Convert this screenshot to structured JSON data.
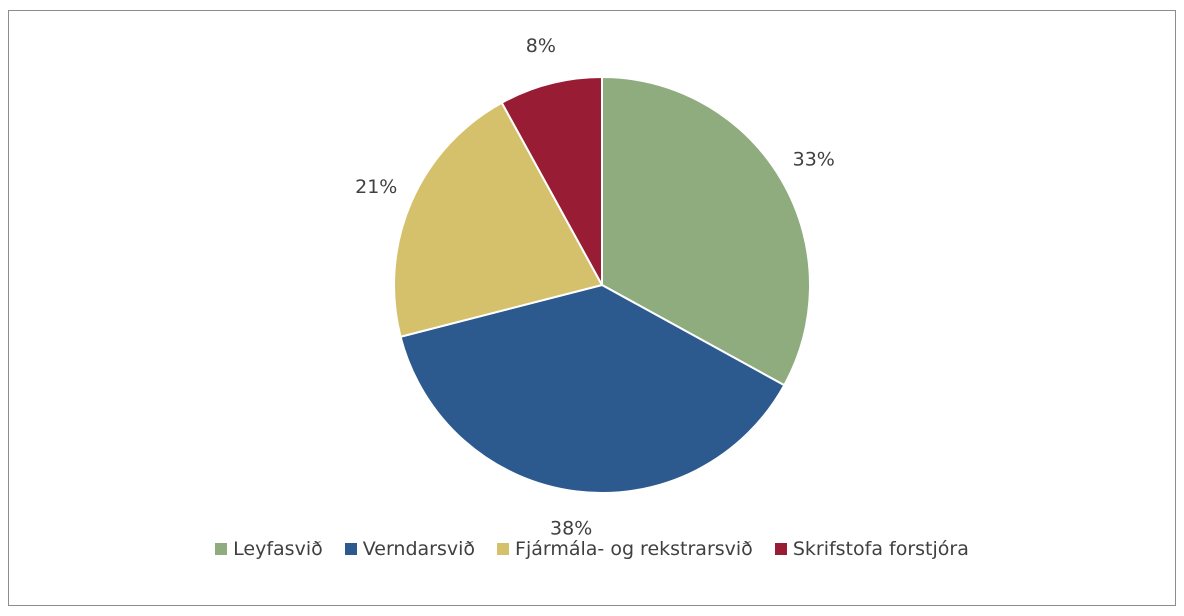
{
  "chart_data": {
    "type": "pie",
    "categories": [
      "Leyfasvið",
      "Verndarsvið",
      "Fjármála- og rekstrarsvið",
      "Skrifstofa forstjóra"
    ],
    "values": [
      33,
      38,
      21,
      8
    ],
    "value_labels": [
      "33%",
      "38%",
      "21%",
      "8%"
    ],
    "colors": [
      "#8fac7e",
      "#2d5a8e",
      "#d5c16b",
      "#991c35"
    ],
    "legend": "bottom"
  }
}
